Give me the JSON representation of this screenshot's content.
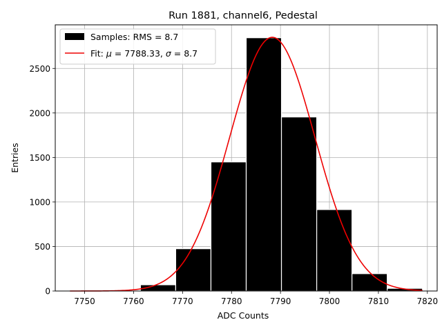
{
  "chart_data": {
    "type": "bar",
    "title": "Run 1881, channel6, Pedestal",
    "xlabel": "ADC Counts",
    "ylabel": "Entries",
    "xlim": [
      7744,
      7822
    ],
    "ylim": [
      0,
      2990
    ],
    "xticks": [
      7750,
      7760,
      7770,
      7780,
      7790,
      7800,
      7810,
      7820
    ],
    "yticks": [
      0,
      500,
      1000,
      1500,
      2000,
      2500
    ],
    "grid": true,
    "legend_position": "upper-left",
    "bins": [
      {
        "x0": 7747.0,
        "x1": 7754.2,
        "count": 0
      },
      {
        "x0": 7754.2,
        "x1": 7761.4,
        "count": 8
      },
      {
        "x0": 7761.4,
        "x1": 7768.6,
        "count": 70
      },
      {
        "x0": 7768.6,
        "x1": 7775.8,
        "count": 475
      },
      {
        "x0": 7775.8,
        "x1": 7783.0,
        "count": 1450
      },
      {
        "x0": 7783.0,
        "x1": 7790.2,
        "count": 2845
      },
      {
        "x0": 7790.2,
        "x1": 7797.4,
        "count": 1955
      },
      {
        "x0": 7797.4,
        "x1": 7804.6,
        "count": 915
      },
      {
        "x0": 7804.6,
        "x1": 7811.8,
        "count": 195
      },
      {
        "x0": 7811.8,
        "x1": 7819.0,
        "count": 30
      }
    ],
    "series": [
      {
        "name": "Samples: RMS = 8.7",
        "kind": "histogram",
        "color": "#000000"
      },
      {
        "name": "Fit: μ = 7788.33, σ = 8.7",
        "kind": "gaussian-fit",
        "color": "#ee0000",
        "mu": 7788.33,
        "sigma": 8.7,
        "amplitude": 2850,
        "x_range": [
          7747,
          7819
        ]
      }
    ],
    "legend": {
      "samples_label": "Samples: RMS = 8.7",
      "fit_prefix": "Fit: ",
      "fit_mu_symbol": "μ",
      "fit_mu_value": " = 7788.33, ",
      "fit_sigma_symbol": "σ",
      "fit_sigma_value": " = 8.7"
    }
  }
}
